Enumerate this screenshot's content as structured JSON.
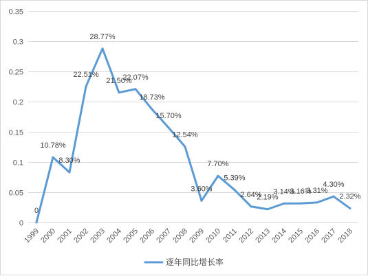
{
  "chart_data": {
    "type": "line",
    "title": "",
    "xlabel": "",
    "ylabel": "",
    "categories": [
      "1999",
      "2000",
      "2001",
      "2002",
      "2003",
      "2004",
      "2005",
      "2006",
      "2007",
      "2008",
      "2009",
      "2010",
      "2011",
      "2012",
      "2013",
      "2014",
      "2015",
      "2016",
      "2017",
      "2018"
    ],
    "series": [
      {
        "name": "逐年同比增长率",
        "values": [
          0,
          0.1078,
          0.083,
          0.2251,
          0.2877,
          0.215,
          0.2207,
          0.1873,
          0.157,
          0.1254,
          0.036,
          0.077,
          0.0539,
          0.0264,
          0.0219,
          0.0314,
          0.0316,
          0.0331,
          0.043,
          0.0232
        ],
        "labels": [
          "0",
          "10.78%",
          "8.30%",
          "22.51%",
          "28.77%",
          "21.50%",
          "22.07%",
          "18.73%",
          "15.70%",
          "12.54%",
          "3.60%",
          "7.70%",
          "5.39%",
          "2.64%",
          "2.19%",
          "3.14%",
          "3.16%",
          "3.31%",
          "4.30%",
          "2.32%"
        ]
      }
    ],
    "ylim": [
      0,
      0.35
    ],
    "yticks": [
      0,
      0.05,
      0.1,
      0.15,
      0.2,
      0.25,
      0.3,
      0.35
    ],
    "ytick_labels": [
      "0",
      "0.05",
      "0.1",
      "0.15",
      "0.2",
      "0.25",
      "0.3",
      "0.35"
    ],
    "grid": true,
    "legend_position": "bottom"
  },
  "colors": {
    "series": "#5B9BD5",
    "grid": "#D9D9D9"
  }
}
